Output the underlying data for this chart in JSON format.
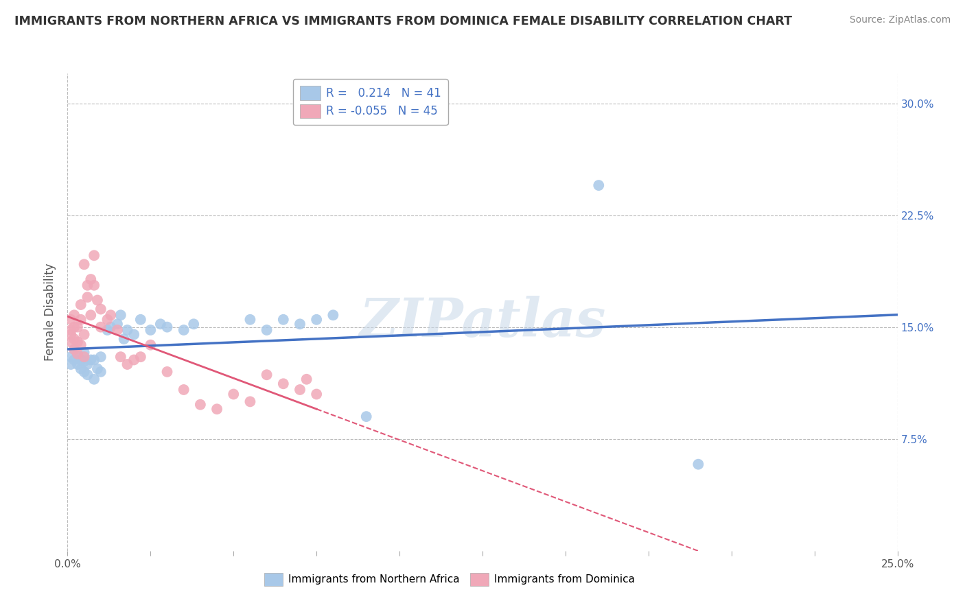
{
  "title": "IMMIGRANTS FROM NORTHERN AFRICA VS IMMIGRANTS FROM DOMINICA FEMALE DISABILITY CORRELATION CHART",
  "source": "Source: ZipAtlas.com",
  "ylabel": "Female Disability",
  "xlim": [
    0.0,
    0.25
  ],
  "ylim": [
    0.0,
    0.32
  ],
  "r_blue": 0.214,
  "n_blue": 41,
  "r_pink": -0.055,
  "n_pink": 45,
  "blue_color": "#a8c8e8",
  "pink_color": "#f0a8b8",
  "blue_line_color": "#4472c4",
  "pink_line_color": "#e05878",
  "legend_label_blue": "Immigrants from Northern Africa",
  "legend_label_pink": "Immigrants from Dominica",
  "blue_scatter_x": [
    0.001,
    0.001,
    0.002,
    0.002,
    0.003,
    0.003,
    0.004,
    0.004,
    0.005,
    0.005,
    0.005,
    0.006,
    0.006,
    0.007,
    0.008,
    0.008,
    0.009,
    0.01,
    0.01,
    0.012,
    0.013,
    0.015,
    0.016,
    0.017,
    0.018,
    0.02,
    0.022,
    0.025,
    0.028,
    0.03,
    0.035,
    0.038,
    0.055,
    0.06,
    0.065,
    0.07,
    0.075,
    0.08,
    0.09,
    0.16,
    0.19
  ],
  "blue_scatter_y": [
    0.13,
    0.125,
    0.128,
    0.135,
    0.125,
    0.132,
    0.122,
    0.128,
    0.12,
    0.127,
    0.133,
    0.118,
    0.125,
    0.128,
    0.115,
    0.128,
    0.122,
    0.13,
    0.12,
    0.148,
    0.15,
    0.152,
    0.158,
    0.142,
    0.148,
    0.145,
    0.155,
    0.148,
    0.152,
    0.15,
    0.148,
    0.152,
    0.155,
    0.148,
    0.155,
    0.152,
    0.155,
    0.158,
    0.09,
    0.245,
    0.058
  ],
  "pink_scatter_x": [
    0.001,
    0.001,
    0.001,
    0.001,
    0.002,
    0.002,
    0.002,
    0.002,
    0.003,
    0.003,
    0.003,
    0.004,
    0.004,
    0.004,
    0.005,
    0.005,
    0.005,
    0.006,
    0.006,
    0.007,
    0.007,
    0.008,
    0.008,
    0.009,
    0.01,
    0.01,
    0.012,
    0.013,
    0.015,
    0.016,
    0.018,
    0.02,
    0.022,
    0.025,
    0.03,
    0.035,
    0.04,
    0.045,
    0.05,
    0.055,
    0.06,
    0.065,
    0.07,
    0.072,
    0.075
  ],
  "pink_scatter_y": [
    0.14,
    0.145,
    0.148,
    0.155,
    0.135,
    0.142,
    0.15,
    0.158,
    0.132,
    0.14,
    0.15,
    0.138,
    0.155,
    0.165,
    0.13,
    0.145,
    0.192,
    0.17,
    0.178,
    0.158,
    0.182,
    0.178,
    0.198,
    0.168,
    0.15,
    0.162,
    0.155,
    0.158,
    0.148,
    0.13,
    0.125,
    0.128,
    0.13,
    0.138,
    0.12,
    0.108,
    0.098,
    0.095,
    0.105,
    0.1,
    0.118,
    0.112,
    0.108,
    0.115,
    0.105
  ],
  "watermark_text": "ZIPatlas",
  "background_color": "#ffffff",
  "grid_color": "#bbbbbb"
}
